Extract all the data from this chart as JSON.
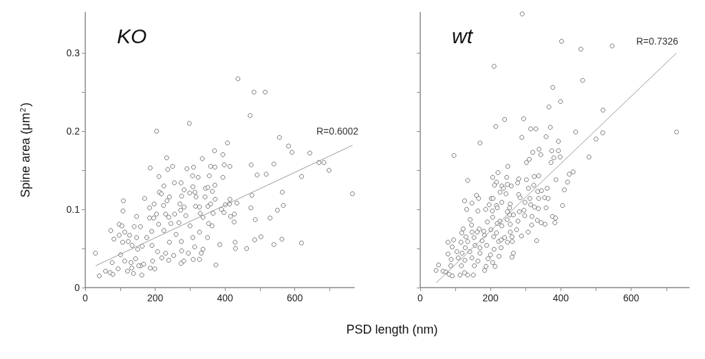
{
  "chart_data": [
    {
      "type": "scatter",
      "title": "KO",
      "ylabel": "Spine area (μm$^{2}$)",
      "xlabel": "PSD length (nm)",
      "annotations": [
        "R=0.6002"
      ],
      "marker": "circle",
      "grid": false,
      "xlim": [
        0,
        770
      ],
      "ylim": [
        0,
        0.352
      ],
      "xticks": [
        0,
        {
          "value": 100,
          "label": null
        },
        200,
        {
          "value": 300,
          "label": null
        },
        400,
        {
          "value": 500,
          "label": null
        },
        600,
        {
          "value": 700,
          "label": null
        }
      ],
      "yticks": [
        0,
        {
          "value": 0.05,
          "label": null
        },
        0.1,
        {
          "value": 0.15,
          "label": null
        },
        0.2,
        {
          "value": 0.25,
          "label": null
        },
        0.3
      ],
      "series": [
        {
          "color": "#555555",
          "x": [
            437,
            483,
            515,
            472,
            298,
            204,
            556,
            407,
            582,
            592,
            643,
            370,
            394,
            335,
            233,
            669,
            683,
            540,
            475,
            698,
            186,
            250,
            291,
            310,
            359,
            371,
            398,
            414,
            236,
            211,
            307,
            323,
            394,
            355,
            492,
            518,
            619,
            255,
            274,
            225,
            308,
            371,
            283,
            344,
            351,
            364,
            212,
            218,
            299,
            314,
            564,
            276,
            317,
            343,
            477,
            241,
            170,
            109,
            372,
            414,
            234,
            224,
            197,
            184,
            271,
            283,
            316,
            327,
            351,
            359,
            401,
            434,
            413,
            567,
            474,
            108,
            273,
            550,
            390,
            397,
            256,
            204,
            230,
            288,
            329,
            427,
            147,
            239,
            184,
            196,
            337,
            366,
            529,
            416,
            487,
            426,
            268,
            210,
            245,
            353,
            97,
            105,
            140,
            158,
            300,
            363,
            73,
            190,
            225,
            260,
            327,
            82,
            97,
            113,
            127,
            147,
            176,
            241,
            275,
            308,
            350,
            503,
            485,
            563,
            619,
            540,
            429,
            430,
            462,
            385,
            313,
            337,
            332,
            295,
            276,
            107,
            123,
            134,
            150,
            163,
            191,
            207,
            230,
            253,
            29,
            101,
            113,
            131,
            144,
            159,
            167,
            193,
            199,
            219,
            239,
            282,
            274,
            309,
            327,
            374,
            77,
            94,
            121,
            138,
            133,
            153,
            186,
            162,
            40,
            58,
            71,
            79,
            765
          ],
          "values": [
            0.267,
            0.25,
            0.25,
            0.22,
            0.21,
            0.2,
            0.192,
            0.185,
            0.181,
            0.173,
            0.172,
            0.175,
            0.17,
            0.165,
            0.166,
            0.16,
            0.16,
            0.158,
            0.157,
            0.15,
            0.153,
            0.155,
            0.152,
            0.154,
            0.155,
            0.154,
            0.157,
            0.155,
            0.151,
            0.142,
            0.143,
            0.141,
            0.141,
            0.143,
            0.144,
            0.145,
            0.142,
            0.134,
            0.134,
            0.13,
            0.129,
            0.131,
            0.125,
            0.127,
            0.128,
            0.123,
            0.122,
            0.12,
            0.121,
            0.122,
            0.122,
            0.117,
            0.116,
            0.116,
            0.118,
            0.116,
            0.114,
            0.111,
            0.113,
            0.113,
            0.111,
            0.105,
            0.107,
            0.102,
            0.107,
            0.103,
            0.104,
            0.103,
            0.104,
            0.107,
            0.106,
            0.108,
            0.107,
            0.105,
            0.102,
            0.098,
            0.099,
            0.099,
            0.1,
            0.096,
            0.094,
            0.094,
            0.094,
            0.092,
            0.095,
            0.094,
            0.091,
            0.09,
            0.089,
            0.089,
            0.09,
            0.095,
            0.089,
            0.091,
            0.087,
            0.084,
            0.083,
            0.081,
            0.082,
            0.082,
            0.081,
            0.079,
            0.078,
            0.078,
            0.079,
            0.079,
            0.073,
            0.072,
            0.073,
            0.068,
            0.071,
            0.062,
            0.067,
            0.071,
            0.067,
            0.064,
            0.064,
            0.058,
            0.059,
            0.064,
            0.064,
            0.065,
            0.061,
            0.062,
            0.057,
            0.055,
            0.058,
            0.05,
            0.05,
            0.055,
            0.052,
            0.049,
            0.044,
            0.044,
            0.047,
            0.058,
            0.059,
            0.054,
            0.049,
            0.053,
            0.054,
            0.046,
            0.044,
            0.041,
            0.044,
            0.042,
            0.034,
            0.032,
            0.037,
            0.028,
            0.03,
            0.034,
            0.024,
            0.038,
            0.035,
            0.034,
            0.031,
            0.036,
            0.036,
            0.029,
            0.032,
            0.024,
            0.021,
            0.018,
            0.025,
            0.028,
            0.025,
            0.016,
            0.015,
            0.021,
            0.019,
            0.017,
            0.12
          ]
        },
        {
          "type": "line",
          "color": "#999999",
          "marker": "none",
          "x": [
            30,
            765
          ],
          "values": [
            0.028,
            0.182
          ]
        }
      ]
    },
    {
      "type": "scatter",
      "title": "wt",
      "annotations": [
        "R=0.7326"
      ],
      "marker": "circle",
      "grid": false,
      "tick_labels": "x",
      "xlim": [
        0,
        765
      ],
      "ylim": [
        0,
        0.352
      ],
      "xticks": [
        0,
        {
          "value": 100,
          "label": null
        },
        200,
        {
          "value": 300,
          "label": null
        },
        400,
        {
          "value": 500,
          "label": null
        },
        600,
        {
          "value": 700,
          "label": null
        }
      ],
      "yticks": [
        0,
        {
          "value": 0.05,
          "label": null
        },
        0.1,
        {
          "value": 0.15,
          "label": null
        },
        0.2,
        {
          "value": 0.25,
          "label": null
        },
        0.3
      ],
      "series": [
        {
          "color": "#555555",
          "x": [
            290,
            402,
            457,
            546,
            210,
            462,
            377,
            399,
            366,
            520,
            294,
            240,
            215,
            314,
            329,
            370,
            442,
            519,
            729,
            358,
            289,
            500,
            393,
            170,
            338,
            393,
            374,
            320,
            343,
            398,
            480,
            380,
            310,
            372,
            302,
            96,
            249,
            221,
            435,
            424,
            206,
            280,
            135,
            246,
            337,
            324,
            302,
            419,
            386,
            217,
            211,
            232,
            248,
            259,
            277,
            323,
            237,
            308,
            361,
            410,
            334,
            345,
            227,
            244,
            160,
            280,
            166,
            202,
            207,
            284,
            312,
            337,
            354,
            364,
            126,
            232,
            147,
            298,
            196,
            217,
            314,
            405,
            256,
            219,
            325,
            336,
            358,
            132,
            164,
            186,
            205,
            254,
            248,
            282,
            295,
            255,
            265,
            297,
            318,
            376,
            385,
            142,
            206,
            247,
            191,
            227,
            278,
            333,
            344,
            355,
            383,
            146,
            219,
            232,
            256,
            122,
            168,
            201,
            274,
            317,
            118,
            147,
            162,
            181,
            217,
            256,
            307,
            288,
            130,
            153,
            183,
            209,
            240,
            261,
            331,
            79,
            95,
            116,
            135,
            176,
            223,
            230,
            248,
            262,
            91,
            128,
            156,
            170,
            189,
            210,
            230,
            79,
            104,
            119,
            141,
            170,
            200,
            224,
            265,
            261,
            88,
            108,
            127,
            147,
            164,
            193,
            206,
            52,
            87,
            117,
            154,
            187,
            213,
            45,
            65,
            73,
            82,
            91,
            113,
            135,
            151,
            183,
            126
          ],
          "values": [
            0.35,
            0.315,
            0.305,
            0.309,
            0.283,
            0.265,
            0.256,
            0.238,
            0.231,
            0.227,
            0.216,
            0.215,
            0.206,
            0.203,
            0.203,
            0.205,
            0.199,
            0.198,
            0.199,
            0.193,
            0.192,
            0.19,
            0.187,
            0.185,
            0.177,
            0.175,
            0.175,
            0.173,
            0.17,
            0.167,
            0.167,
            0.166,
            0.164,
            0.16,
            0.16,
            0.169,
            0.155,
            0.147,
            0.148,
            0.145,
            0.141,
            0.139,
            0.137,
            0.141,
            0.143,
            0.142,
            0.138,
            0.135,
            0.138,
            0.135,
            0.131,
            0.13,
            0.132,
            0.13,
            0.134,
            0.131,
            0.127,
            0.127,
            0.127,
            0.125,
            0.123,
            0.124,
            0.122,
            0.12,
            0.118,
            0.119,
            0.114,
            0.114,
            0.114,
            0.115,
            0.114,
            0.114,
            0.115,
            0.114,
            0.111,
            0.109,
            0.108,
            0.109,
            0.106,
            0.105,
            0.106,
            0.105,
            0.107,
            0.102,
            0.103,
            0.101,
            0.102,
            0.1,
            0.098,
            0.1,
            0.098,
            0.102,
            0.097,
            0.097,
            0.099,
            0.093,
            0.093,
            0.092,
            0.091,
            0.091,
            0.089,
            0.087,
            0.09,
            0.087,
            0.084,
            0.085,
            0.085,
            0.086,
            0.083,
            0.081,
            0.083,
            0.08,
            0.082,
            0.079,
            0.081,
            0.075,
            0.075,
            0.074,
            0.074,
            0.08,
            0.07,
            0.071,
            0.071,
            0.072,
            0.07,
            0.071,
            0.071,
            0.066,
            0.065,
            0.064,
            0.067,
            0.065,
            0.064,
            0.065,
            0.06,
            0.058,
            0.061,
            0.058,
            0.059,
            0.06,
            0.059,
            0.061,
            0.058,
            0.059,
            0.052,
            0.051,
            0.054,
            0.051,
            0.054,
            0.049,
            0.051,
            0.043,
            0.046,
            0.044,
            0.046,
            0.044,
            0.042,
            0.04,
            0.044,
            0.039,
            0.036,
            0.038,
            0.035,
            0.038,
            0.034,
            0.037,
            0.032,
            0.029,
            0.028,
            0.028,
            0.028,
            0.027,
            0.027,
            0.022,
            0.021,
            0.02,
            0.017,
            0.015,
            0.016,
            0.016,
            0.016,
            0.022,
            0.019
          ]
        },
        {
          "type": "line",
          "color": "#999999",
          "marker": "none",
          "x": [
            45,
            729
          ],
          "values": [
            0.006,
            0.3
          ]
        }
      ]
    }
  ]
}
